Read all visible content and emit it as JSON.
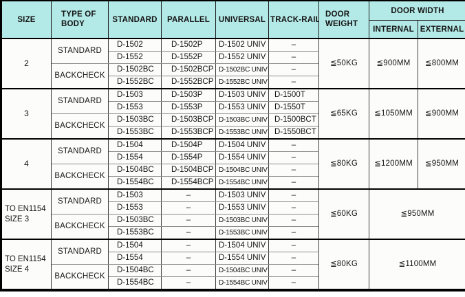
{
  "colors": {
    "header_bg": "#b3e9e6"
  },
  "header": {
    "size": "SIZE",
    "type_of_body": "TYPE OF BODY",
    "standard": "STANDARD",
    "parallel": "PARALLEL",
    "universal": "UNIVERSAL",
    "track_rail": "TRACK-RAIL",
    "door_weight": "DOOR WEIGHT",
    "door_width": "DOOR WIDTH",
    "internal": "INTERNAL",
    "external": "EXTERNAL"
  },
  "body": {
    "standard": "STANDARD",
    "backcheck": "BACKCHECK"
  },
  "groups": [
    {
      "size": "2",
      "door_weight": "≦50KG",
      "internal": "≦900MM",
      "external": "≦800MM",
      "rows": [
        {
          "standard": "D-1502",
          "parallel": "D-1502P",
          "universal": "D-1502 UNIV",
          "track_rail": "–"
        },
        {
          "standard": "D-1552",
          "parallel": "D-1552P",
          "universal": "D-1552 UNIV",
          "track_rail": "–"
        },
        {
          "standard": "D-1502BC",
          "parallel": "D-1502BCP",
          "universal": "D-1502BC UNIV",
          "track_rail": "–"
        },
        {
          "standard": "D-1552BC",
          "parallel": "D-1552BCP",
          "universal": "D-1552BC UNIV",
          "track_rail": "–"
        }
      ]
    },
    {
      "size": "3",
      "door_weight": "≦65KG",
      "internal": "≦1050MM",
      "external": "≦900MM",
      "rows": [
        {
          "standard": "D-1503",
          "parallel": "D-1503P",
          "universal": "D-1503 UNIV",
          "track_rail": "D-1500T"
        },
        {
          "standard": "D-1553",
          "parallel": "D-1553P",
          "universal": "D-1553 UNIV",
          "track_rail": "D-1550T"
        },
        {
          "standard": "D-1503BC",
          "parallel": "D-1503BCP",
          "universal": "D-1503BC UNIV",
          "track_rail": "D-1500BCT"
        },
        {
          "standard": "D-1553BC",
          "parallel": "D-1553BCP",
          "universal": "D-1553BC UNIV",
          "track_rail": "D-1550BCT"
        }
      ]
    },
    {
      "size": "4",
      "door_weight": "≦80KG",
      "internal": "≦1200MM",
      "external": "≦950MM",
      "rows": [
        {
          "standard": "D-1504",
          "parallel": "D-1504P",
          "universal": "D-1504 UNIV",
          "track_rail": "–"
        },
        {
          "standard": "D-1554",
          "parallel": "D-1554P",
          "universal": "D-1554 UNIV",
          "track_rail": "–"
        },
        {
          "standard": "D-1504BC",
          "parallel": "D-1504BCP",
          "universal": "D-1504BC UNIV",
          "track_rail": "–"
        },
        {
          "standard": "D-1554BC",
          "parallel": "D-1554BCP",
          "universal": "D-1554BC UNIV",
          "track_rail": "–"
        }
      ]
    },
    {
      "size": "TO EN1154 SIZE 3",
      "door_weight": "≦60KG",
      "door_width": "≦950MM",
      "rows": [
        {
          "standard": "D-1503",
          "parallel": "–",
          "universal": "D-1503 UNIV",
          "track_rail": "–"
        },
        {
          "standard": "D-1553",
          "parallel": "–",
          "universal": "D-1553 UNIV",
          "track_rail": "–"
        },
        {
          "standard": "D-1503BC",
          "parallel": "–",
          "universal": "D-1503BC UNIV",
          "track_rail": "–"
        },
        {
          "standard": "D-1553BC",
          "parallel": "–",
          "universal": "D-1553BC UNIV",
          "track_rail": "–"
        }
      ]
    },
    {
      "size": "TO EN1154 SIZE 4",
      "door_weight": "≦80KG",
      "door_width": "≦1100MM",
      "rows": [
        {
          "standard": "D-1504",
          "parallel": "–",
          "universal": "D-1504 UNIV",
          "track_rail": "–"
        },
        {
          "standard": "D-1554",
          "parallel": "–",
          "universal": "D-1554 UNIV",
          "track_rail": "–"
        },
        {
          "standard": "D-1504BC",
          "parallel": "–",
          "universal": "D-1504BC UNIV",
          "track_rail": "–"
        },
        {
          "standard": "D-1554BC",
          "parallel": "–",
          "universal": "D-1554BC UNIV",
          "track_rail": "–"
        }
      ]
    }
  ]
}
